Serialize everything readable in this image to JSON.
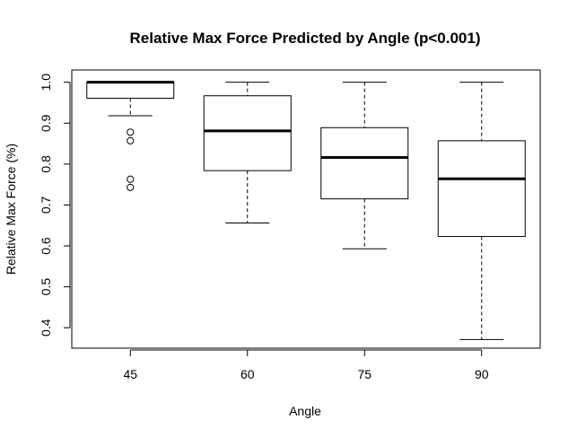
{
  "chart_data": {
    "type": "boxplot",
    "title": "Relative Max Force Predicted by Angle (p<0.001)",
    "xlabel": "Angle",
    "ylabel": "Relative Max Force (%)",
    "categories": [
      "45",
      "60",
      "75",
      "90"
    ],
    "ylim": [
      0.35,
      1.03
    ],
    "yticks": [
      0.4,
      0.5,
      0.6,
      0.7,
      0.8,
      0.9,
      1.0
    ],
    "ytick_labels": [
      "0.4",
      "0.5",
      "0.6",
      "0.7",
      "0.8",
      "0.9",
      "1.0"
    ],
    "boxes": [
      {
        "category": "45",
        "whisker_low": 0.918,
        "q1": 0.961,
        "median": 1.0,
        "q3": 1.0,
        "whisker_high": 1.0,
        "outliers": [
          0.878,
          0.857,
          0.763,
          0.743
        ]
      },
      {
        "category": "60",
        "whisker_low": 0.656,
        "q1": 0.784,
        "median": 0.881,
        "q3": 0.967,
        "whisker_high": 1.0,
        "outliers": []
      },
      {
        "category": "75",
        "whisker_low": 0.593,
        "q1": 0.715,
        "median": 0.816,
        "q3": 0.889,
        "whisker_high": 1.0,
        "outliers": []
      },
      {
        "category": "90",
        "whisker_low": 0.371,
        "q1": 0.623,
        "median": 0.764,
        "q3": 0.857,
        "whisker_high": 1.0,
        "outliers": []
      }
    ]
  }
}
